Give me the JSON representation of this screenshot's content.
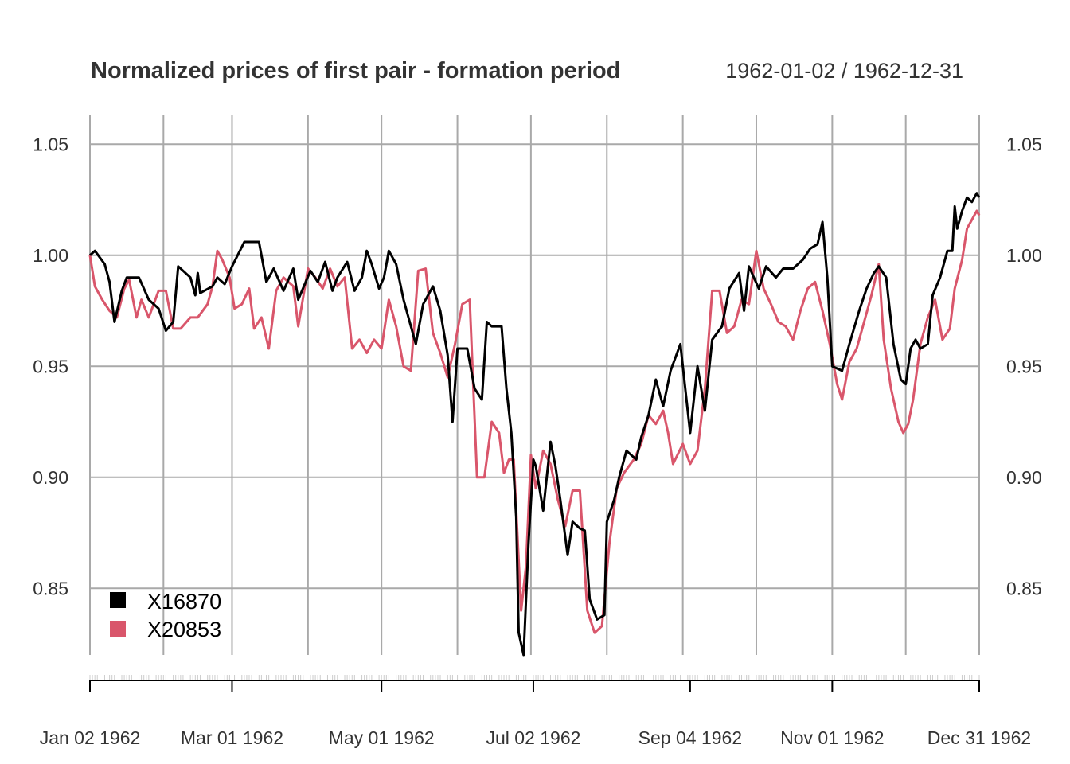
{
  "chart_data": {
    "type": "line",
    "title": "Normalized prices of first pair - formation period",
    "date_range": "1962-01-02 / 1962-12-31",
    "xlabel": "",
    "ylabel": "",
    "xlim": [
      "1962-01-02",
      "1962-12-31"
    ],
    "ylim": [
      0.82,
      1.063
    ],
    "grid": true,
    "legend_position": "bottom-left",
    "y_ticks": [
      0.85,
      0.9,
      0.95,
      1.0,
      1.05
    ],
    "y_tick_labels": [
      "0.85",
      "0.90",
      "0.95",
      "1.00",
      "1.05"
    ],
    "x_ticks": [
      "1962-01-02",
      "1962-03-01",
      "1962-05-01",
      "1962-07-02",
      "1962-09-04",
      "1962-11-01",
      "1962-12-31"
    ],
    "x_tick_labels": [
      "Jan 02 1962",
      "Mar 01 1962",
      "May 01 1962",
      "Jul 02 1962",
      "Sep 04 1962",
      "Nov 01 1962",
      "Dec 31 1962"
    ],
    "series": [
      {
        "name": "X16870",
        "color": "#000000",
        "points": [
          [
            "1962-01-02",
            1.0
          ],
          [
            "1962-01-04",
            1.002
          ],
          [
            "1962-01-08",
            0.996
          ],
          [
            "1962-01-10",
            0.988
          ],
          [
            "1962-01-12",
            0.97
          ],
          [
            "1962-01-15",
            0.984
          ],
          [
            "1962-01-17",
            0.99
          ],
          [
            "1962-01-22",
            0.99
          ],
          [
            "1962-01-24",
            0.985
          ],
          [
            "1962-01-26",
            0.98
          ],
          [
            "1962-01-30",
            0.976
          ],
          [
            "1962-02-02",
            0.966
          ],
          [
            "1962-02-05",
            0.97
          ],
          [
            "1962-02-07",
            0.995
          ],
          [
            "1962-02-12",
            0.99
          ],
          [
            "1962-02-14",
            0.982
          ],
          [
            "1962-02-15",
            0.992
          ],
          [
            "1962-02-16",
            0.983
          ],
          [
            "1962-02-21",
            0.986
          ],
          [
            "1962-02-23",
            0.99
          ],
          [
            "1962-02-26",
            0.987
          ],
          [
            "1962-03-01",
            0.995
          ],
          [
            "1962-03-06",
            1.006
          ],
          [
            "1962-03-12",
            1.006
          ],
          [
            "1962-03-15",
            0.988
          ],
          [
            "1962-03-18",
            0.994
          ],
          [
            "1962-03-22",
            0.984
          ],
          [
            "1962-03-26",
            0.994
          ],
          [
            "1962-03-28",
            0.98
          ],
          [
            "1962-04-02",
            0.993
          ],
          [
            "1962-04-05",
            0.988
          ],
          [
            "1962-04-08",
            0.997
          ],
          [
            "1962-04-11",
            0.984
          ],
          [
            "1962-04-13",
            0.99
          ],
          [
            "1962-04-17",
            0.997
          ],
          [
            "1962-04-20",
            0.984
          ],
          [
            "1962-04-23",
            0.99
          ],
          [
            "1962-04-25",
            1.002
          ],
          [
            "1962-04-27",
            0.996
          ],
          [
            "1962-04-30",
            0.985
          ],
          [
            "1962-05-02",
            0.99
          ],
          [
            "1962-05-04",
            1.002
          ],
          [
            "1962-05-07",
            0.996
          ],
          [
            "1962-05-10",
            0.98
          ],
          [
            "1962-05-15",
            0.96
          ],
          [
            "1962-05-18",
            0.978
          ],
          [
            "1962-05-22",
            0.986
          ],
          [
            "1962-05-25",
            0.975
          ],
          [
            "1962-05-28",
            0.955
          ],
          [
            "1962-05-30",
            0.925
          ],
          [
            "1962-06-01",
            0.958
          ],
          [
            "1962-06-05",
            0.958
          ],
          [
            "1962-06-08",
            0.94
          ],
          [
            "1962-06-11",
            0.935
          ],
          [
            "1962-06-13",
            0.97
          ],
          [
            "1962-06-15",
            0.968
          ],
          [
            "1962-06-19",
            0.968
          ],
          [
            "1962-06-21",
            0.94
          ],
          [
            "1962-06-23",
            0.92
          ],
          [
            "1962-06-25",
            0.882
          ],
          [
            "1962-06-26",
            0.83
          ],
          [
            "1962-06-28",
            0.82
          ],
          [
            "1962-06-30",
            0.87
          ],
          [
            "1962-07-02",
            0.908
          ],
          [
            "1962-07-03",
            0.905
          ],
          [
            "1962-07-06",
            0.885
          ],
          [
            "1962-07-09",
            0.916
          ],
          [
            "1962-07-11",
            0.905
          ],
          [
            "1962-07-13",
            0.89
          ],
          [
            "1962-07-16",
            0.865
          ],
          [
            "1962-07-18",
            0.88
          ],
          [
            "1962-07-21",
            0.877
          ],
          [
            "1962-07-23",
            0.876
          ],
          [
            "1962-07-25",
            0.845
          ],
          [
            "1962-07-28",
            0.836
          ],
          [
            "1962-07-31",
            0.838
          ],
          [
            "1962-08-01",
            0.88
          ],
          [
            "1962-08-04",
            0.89
          ],
          [
            "1962-08-06",
            0.9
          ],
          [
            "1962-08-09",
            0.912
          ],
          [
            "1962-08-13",
            0.908
          ],
          [
            "1962-08-15",
            0.918
          ],
          [
            "1962-08-18",
            0.928
          ],
          [
            "1962-08-21",
            0.944
          ],
          [
            "1962-08-24",
            0.932
          ],
          [
            "1962-08-27",
            0.948
          ],
          [
            "1962-08-31",
            0.96
          ],
          [
            "1962-09-04",
            0.92
          ],
          [
            "1962-09-07",
            0.95
          ],
          [
            "1962-09-10",
            0.93
          ],
          [
            "1962-09-13",
            0.962
          ],
          [
            "1962-09-17",
            0.968
          ],
          [
            "1962-09-20",
            0.985
          ],
          [
            "1962-09-24",
            0.992
          ],
          [
            "1962-09-26",
            0.975
          ],
          [
            "1962-09-28",
            0.995
          ],
          [
            "1962-10-02",
            0.985
          ],
          [
            "1962-10-05",
            0.995
          ],
          [
            "1962-10-09",
            0.99
          ],
          [
            "1962-10-12",
            0.994
          ],
          [
            "1962-10-16",
            0.994
          ],
          [
            "1962-10-20",
            0.998
          ],
          [
            "1962-10-23",
            1.003
          ],
          [
            "1962-10-26",
            1.005
          ],
          [
            "1962-10-28",
            1.015
          ],
          [
            "1962-10-30",
            0.99
          ],
          [
            "1962-11-01",
            0.95
          ],
          [
            "1962-11-05",
            0.948
          ],
          [
            "1962-11-08",
            0.96
          ],
          [
            "1962-11-12",
            0.975
          ],
          [
            "1962-11-15",
            0.985
          ],
          [
            "1962-11-18",
            0.992
          ],
          [
            "1962-11-20",
            0.995
          ],
          [
            "1962-11-23",
            0.99
          ],
          [
            "1962-11-26",
            0.96
          ],
          [
            "1962-11-29",
            0.944
          ],
          [
            "1962-12-01",
            0.942
          ],
          [
            "1962-12-03",
            0.958
          ],
          [
            "1962-12-05",
            0.962
          ],
          [
            "1962-12-07",
            0.958
          ],
          [
            "1962-12-10",
            0.96
          ],
          [
            "1962-12-12",
            0.982
          ],
          [
            "1962-12-15",
            0.99
          ],
          [
            "1962-12-18",
            1.002
          ],
          [
            "1962-12-20",
            1.002
          ],
          [
            "1962-12-21",
            1.022
          ],
          [
            "1962-12-22",
            1.012
          ],
          [
            "1962-12-24",
            1.02
          ],
          [
            "1962-12-26",
            1.026
          ],
          [
            "1962-12-28",
            1.024
          ],
          [
            "1962-12-30",
            1.028
          ],
          [
            "1962-12-31",
            1.026
          ]
        ]
      },
      {
        "name": "X20853",
        "color": "#d9566b",
        "points": [
          [
            "1962-01-02",
            1.0
          ],
          [
            "1962-01-04",
            0.986
          ],
          [
            "1962-01-07",
            0.98
          ],
          [
            "1962-01-10",
            0.975
          ],
          [
            "1962-01-13",
            0.972
          ],
          [
            "1962-01-16",
            0.985
          ],
          [
            "1962-01-18",
            0.989
          ],
          [
            "1962-01-21",
            0.972
          ],
          [
            "1962-01-23",
            0.98
          ],
          [
            "1962-01-26",
            0.972
          ],
          [
            "1962-01-30",
            0.984
          ],
          [
            "1962-02-02",
            0.984
          ],
          [
            "1962-02-05",
            0.967
          ],
          [
            "1962-02-08",
            0.967
          ],
          [
            "1962-02-12",
            0.972
          ],
          [
            "1962-02-15",
            0.972
          ],
          [
            "1962-02-19",
            0.978
          ],
          [
            "1962-02-21",
            0.986
          ],
          [
            "1962-02-23",
            1.002
          ],
          [
            "1962-02-25",
            0.998
          ],
          [
            "1962-02-28",
            0.99
          ],
          [
            "1962-03-02",
            0.976
          ],
          [
            "1962-03-05",
            0.978
          ],
          [
            "1962-03-08",
            0.985
          ],
          [
            "1962-03-10",
            0.967
          ],
          [
            "1962-03-13",
            0.972
          ],
          [
            "1962-03-16",
            0.958
          ],
          [
            "1962-03-19",
            0.984
          ],
          [
            "1962-03-22",
            0.99
          ],
          [
            "1962-03-26",
            0.986
          ],
          [
            "1962-03-28",
            0.968
          ],
          [
            "1962-04-01",
            0.994
          ],
          [
            "1962-04-04",
            0.99
          ],
          [
            "1962-04-07",
            0.985
          ],
          [
            "1962-04-10",
            0.994
          ],
          [
            "1962-04-13",
            0.986
          ],
          [
            "1962-04-16",
            0.99
          ],
          [
            "1962-04-19",
            0.958
          ],
          [
            "1962-04-22",
            0.962
          ],
          [
            "1962-04-25",
            0.956
          ],
          [
            "1962-04-28",
            0.962
          ],
          [
            "1962-05-01",
            0.958
          ],
          [
            "1962-05-04",
            0.98
          ],
          [
            "1962-05-07",
            0.968
          ],
          [
            "1962-05-10",
            0.95
          ],
          [
            "1962-05-13",
            0.948
          ],
          [
            "1962-05-16",
            0.993
          ],
          [
            "1962-05-19",
            0.994
          ],
          [
            "1962-05-22",
            0.965
          ],
          [
            "1962-05-25",
            0.956
          ],
          [
            "1962-05-28",
            0.945
          ],
          [
            "1962-05-31",
            0.96
          ],
          [
            "1962-06-03",
            0.978
          ],
          [
            "1962-06-06",
            0.98
          ],
          [
            "1962-06-09",
            0.9
          ],
          [
            "1962-06-12",
            0.9
          ],
          [
            "1962-06-15",
            0.925
          ],
          [
            "1962-06-18",
            0.92
          ],
          [
            "1962-06-20",
            0.902
          ],
          [
            "1962-06-22",
            0.908
          ],
          [
            "1962-06-24",
            0.908
          ],
          [
            "1962-06-27",
            0.84
          ],
          [
            "1962-06-29",
            0.86
          ],
          [
            "1962-07-01",
            0.91
          ],
          [
            "1962-07-03",
            0.895
          ],
          [
            "1962-07-06",
            0.912
          ],
          [
            "1962-07-09",
            0.906
          ],
          [
            "1962-07-12",
            0.89
          ],
          [
            "1962-07-15",
            0.878
          ],
          [
            "1962-07-18",
            0.894
          ],
          [
            "1962-07-21",
            0.894
          ],
          [
            "1962-07-24",
            0.84
          ],
          [
            "1962-07-27",
            0.83
          ],
          [
            "1962-07-30",
            0.833
          ],
          [
            "1962-08-02",
            0.87
          ],
          [
            "1962-08-05",
            0.895
          ],
          [
            "1962-08-08",
            0.902
          ],
          [
            "1962-08-12",
            0.908
          ],
          [
            "1962-08-15",
            0.915
          ],
          [
            "1962-08-18",
            0.928
          ],
          [
            "1962-08-21",
            0.924
          ],
          [
            "1962-08-24",
            0.93
          ],
          [
            "1962-08-26",
            0.92
          ],
          [
            "1962-08-28",
            0.906
          ],
          [
            "1962-09-01",
            0.915
          ],
          [
            "1962-09-04",
            0.906
          ],
          [
            "1962-09-07",
            0.912
          ],
          [
            "1962-09-10",
            0.94
          ],
          [
            "1962-09-13",
            0.984
          ],
          [
            "1962-09-16",
            0.984
          ],
          [
            "1962-09-19",
            0.965
          ],
          [
            "1962-09-22",
            0.968
          ],
          [
            "1962-09-25",
            0.98
          ],
          [
            "1962-09-28",
            0.978
          ],
          [
            "1962-10-01",
            1.002
          ],
          [
            "1962-10-04",
            0.985
          ],
          [
            "1962-10-07",
            0.978
          ],
          [
            "1962-10-10",
            0.97
          ],
          [
            "1962-10-13",
            0.968
          ],
          [
            "1962-10-16",
            0.962
          ],
          [
            "1962-10-19",
            0.975
          ],
          [
            "1962-10-22",
            0.985
          ],
          [
            "1962-10-25",
            0.988
          ],
          [
            "1962-10-28",
            0.975
          ],
          [
            "1962-10-31",
            0.96
          ],
          [
            "1962-11-03",
            0.942
          ],
          [
            "1962-11-05",
            0.935
          ],
          [
            "1962-11-08",
            0.952
          ],
          [
            "1962-11-11",
            0.958
          ],
          [
            "1962-11-14",
            0.97
          ],
          [
            "1962-11-17",
            0.982
          ],
          [
            "1962-11-20",
            0.996
          ],
          [
            "1962-11-22",
            0.962
          ],
          [
            "1962-11-25",
            0.94
          ],
          [
            "1962-11-28",
            0.925
          ],
          [
            "1962-11-30",
            0.92
          ],
          [
            "1962-12-02",
            0.924
          ],
          [
            "1962-12-04",
            0.935
          ],
          [
            "1962-12-07",
            0.96
          ],
          [
            "1962-12-10",
            0.972
          ],
          [
            "1962-12-13",
            0.98
          ],
          [
            "1962-12-16",
            0.962
          ],
          [
            "1962-12-19",
            0.967
          ],
          [
            "1962-12-21",
            0.985
          ],
          [
            "1962-12-24",
            0.998
          ],
          [
            "1962-12-26",
            1.012
          ],
          [
            "1962-12-28",
            1.016
          ],
          [
            "1962-12-30",
            1.02
          ],
          [
            "1962-12-31",
            1.018
          ]
        ]
      }
    ]
  }
}
